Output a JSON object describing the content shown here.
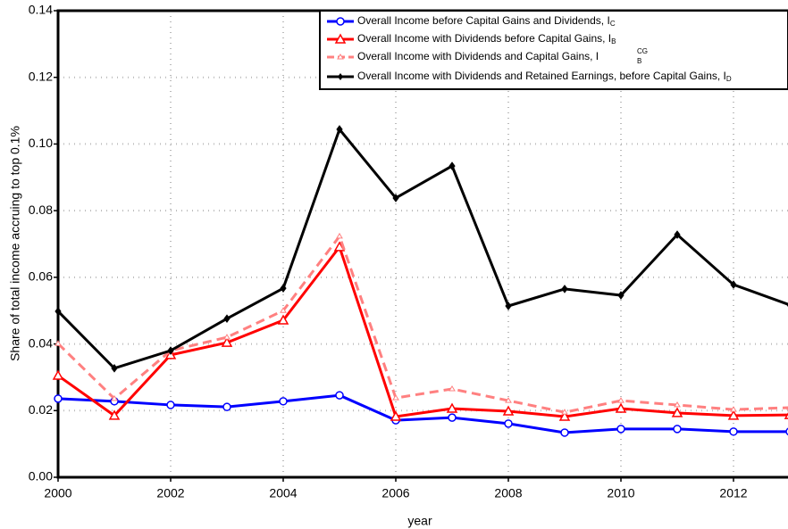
{
  "chart_data": {
    "type": "line",
    "xlabel": "year",
    "ylabel": "Share of total income accruing to top 0.1%",
    "x": [
      2000,
      2001,
      2002,
      2003,
      2004,
      2005,
      2006,
      2007,
      2008,
      2009,
      2010,
      2011,
      2012,
      2013
    ],
    "xlim": [
      2000,
      2013
    ],
    "xticks": [
      2000,
      2002,
      2004,
      2006,
      2008,
      2010,
      2012
    ],
    "ylim": [
      0,
      0.14
    ],
    "yticks": [
      {
        "value": 0,
        "label": "0.00"
      },
      {
        "value": 0.02,
        "label": "0.02"
      },
      {
        "value": 0.04,
        "label": "0.04"
      },
      {
        "value": 0.06,
        "label": "0.06"
      },
      {
        "value": 0.08,
        "label": "0.08"
      },
      {
        "value": 0.1,
        "label": "0.10"
      },
      {
        "value": 0.12,
        "label": "0.12"
      },
      {
        "value": 0.14,
        "label": "0.14"
      }
    ],
    "grid": true,
    "legend": "upper right",
    "series": [
      {
        "name": "Overall Income before Capital Gains and Dividends, I",
        "sub": "C",
        "color": "#0000ff",
        "marker": "circle",
        "dash": false,
        "values": [
          0.0236,
          0.0228,
          0.0217,
          0.0211,
          0.0228,
          0.0246,
          0.0171,
          0.0179,
          0.0161,
          0.0134,
          0.0145,
          0.0145,
          0.0137,
          0.0137
        ]
      },
      {
        "name": "Overall Income with Dividends before Capital Gains, I",
        "sub": "B",
        "color": "#ff0000",
        "marker": "triangle",
        "dash": false,
        "values": [
          0.0305,
          0.0185,
          0.0367,
          0.0404,
          0.0471,
          0.0691,
          0.0182,
          0.0206,
          0.0198,
          0.0182,
          0.0206,
          0.0193,
          0.0185,
          0.0187
        ]
      },
      {
        "name": "Overall Income with Dividends and Capital Gains, I",
        "sub": "B",
        "sup": "CG",
        "color": "#ff8080",
        "marker": "small-triangle",
        "dash": true,
        "values": [
          0.0401,
          0.0236,
          0.038,
          0.042,
          0.05,
          0.0723,
          0.0238,
          0.0265,
          0.023,
          0.0195,
          0.023,
          0.0217,
          0.0203,
          0.0209
        ]
      },
      {
        "name": "Overall Income with Dividends and Retained Earnings, before Capital Gains, I",
        "sub": "D",
        "color": "#000000",
        "marker": "diamond",
        "dash": false,
        "values": [
          0.0498,
          0.0327,
          0.038,
          0.0476,
          0.0567,
          0.1044,
          0.0838,
          0.0934,
          0.0514,
          0.0565,
          0.0546,
          0.0728,
          0.0578,
          0.0517
        ]
      }
    ]
  }
}
